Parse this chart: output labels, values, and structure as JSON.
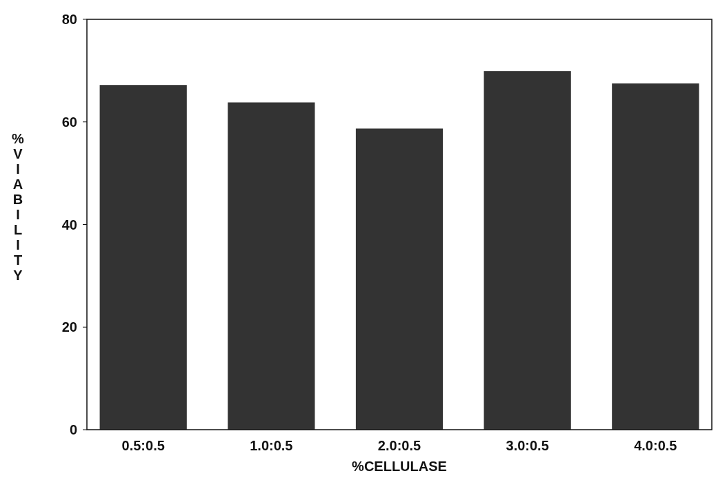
{
  "chart_data": {
    "type": "bar",
    "xlabel": "%CELLULASE",
    "ylabel": "%VIABILITY",
    "categories": [
      "0.5:0.5",
      "1.0:0.5",
      "2.0:0.5",
      "3.0:0.5",
      "4.0:0.5"
    ],
    "values": [
      67.2,
      63.8,
      58.7,
      69.9,
      67.5
    ],
    "color": "#333333",
    "ylim": [
      0,
      80
    ],
    "yticks": [
      0,
      20,
      40,
      60,
      80
    ],
    "grid": false
  }
}
